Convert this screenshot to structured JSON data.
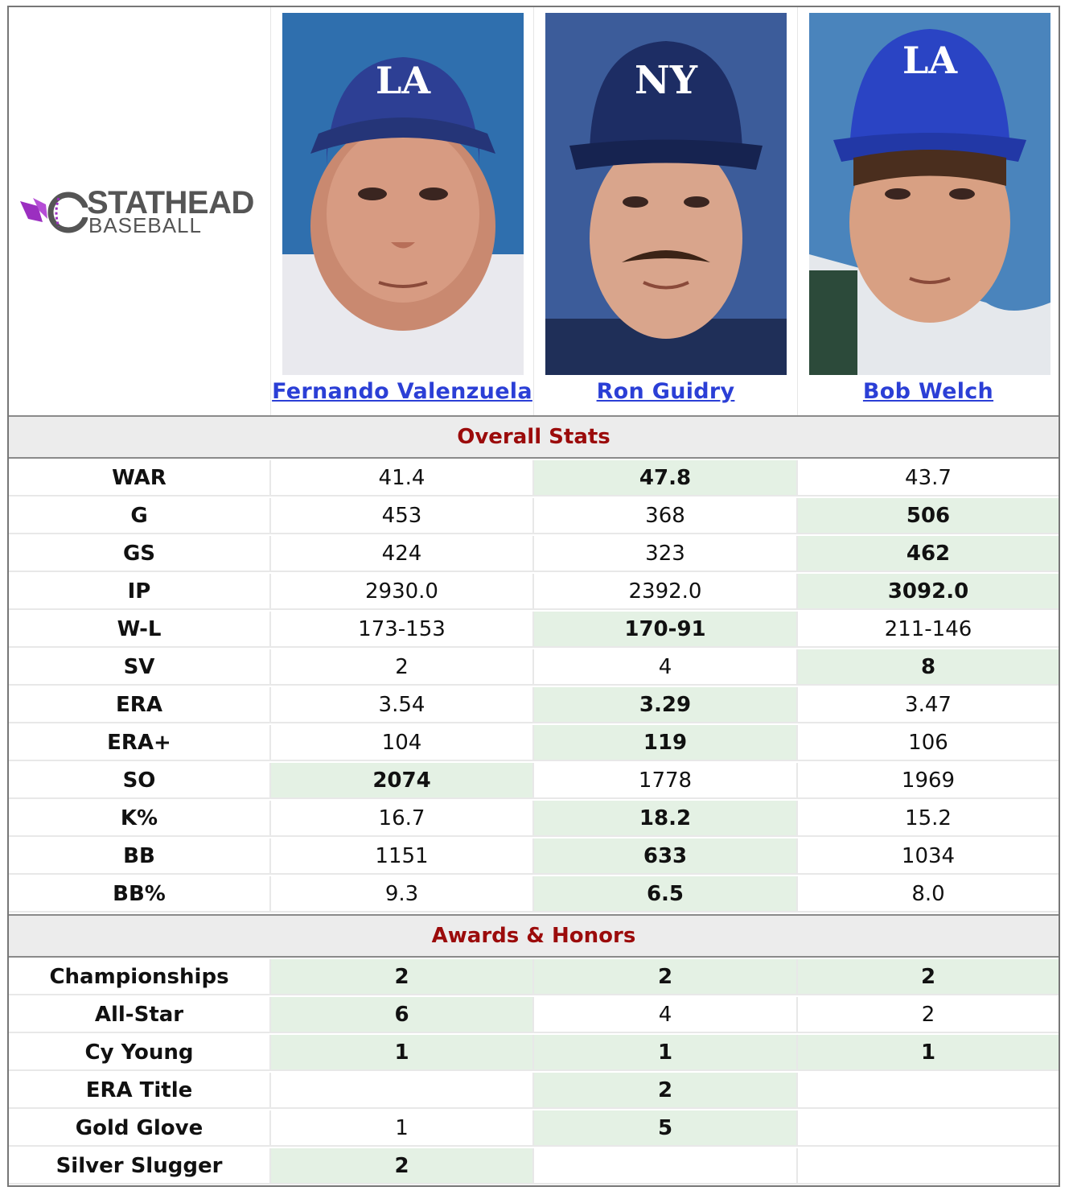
{
  "logo": {
    "line1": "STATHEAD",
    "line2": "BASEBALL"
  },
  "players": [
    {
      "name": "Fernando Valenzuela",
      "cap_logo": "LA",
      "cap_color": "#2a44c4"
    },
    {
      "name": "Ron Guidry",
      "cap_logo": "NY",
      "cap_color": "#1d2d64"
    },
    {
      "name": "Bob Welch",
      "cap_logo": "LA",
      "cap_color": "#2a44c4"
    }
  ],
  "sections": {
    "overall": "Overall Stats",
    "awards": "Awards & Honors"
  },
  "overall_rows": [
    {
      "label": "WAR",
      "values": [
        "41.4",
        "47.8",
        "43.7"
      ],
      "best": [
        1
      ]
    },
    {
      "label": "G",
      "values": [
        "453",
        "368",
        "506"
      ],
      "best": [
        2
      ]
    },
    {
      "label": "GS",
      "values": [
        "424",
        "323",
        "462"
      ],
      "best": [
        2
      ]
    },
    {
      "label": "IP",
      "values": [
        "2930.0",
        "2392.0",
        "3092.0"
      ],
      "best": [
        2
      ]
    },
    {
      "label": "W-L",
      "values": [
        "173-153",
        "170-91",
        "211-146"
      ],
      "best": [
        1
      ]
    },
    {
      "label": "SV",
      "values": [
        "2",
        "4",
        "8"
      ],
      "best": [
        2
      ]
    },
    {
      "label": "ERA",
      "values": [
        "3.54",
        "3.29",
        "3.47"
      ],
      "best": [
        1
      ]
    },
    {
      "label": "ERA+",
      "values": [
        "104",
        "119",
        "106"
      ],
      "best": [
        1
      ]
    },
    {
      "label": "SO",
      "values": [
        "2074",
        "1778",
        "1969"
      ],
      "best": [
        0
      ]
    },
    {
      "label": "K%",
      "values": [
        "16.7",
        "18.2",
        "15.2"
      ],
      "best": [
        1
      ]
    },
    {
      "label": "BB",
      "values": [
        "1151",
        "633",
        "1034"
      ],
      "best": [
        1
      ]
    },
    {
      "label": "BB%",
      "values": [
        "9.3",
        "6.5",
        "8.0"
      ],
      "best": [
        1
      ]
    }
  ],
  "award_rows": [
    {
      "label": "Championships",
      "values": [
        "2",
        "2",
        "2"
      ],
      "best": [
        0,
        1,
        2
      ]
    },
    {
      "label": "All-Star",
      "values": [
        "6",
        "4",
        "2"
      ],
      "best": [
        0
      ]
    },
    {
      "label": "Cy Young",
      "values": [
        "1",
        "1",
        "1"
      ],
      "best": [
        0,
        1,
        2
      ]
    },
    {
      "label": "ERA Title",
      "values": [
        "",
        "2",
        ""
      ],
      "best": [
        1
      ]
    },
    {
      "label": "Gold Glove",
      "values": [
        "1",
        "5",
        ""
      ],
      "best": [
        1
      ]
    },
    {
      "label": "Silver Slugger",
      "values": [
        "2",
        "",
        ""
      ],
      "best": [
        0
      ]
    }
  ],
  "colors": {
    "accent": "#9b0b0b",
    "link": "#2b3fd6",
    "highlight": "#e4f1e4",
    "logo_purple": "#9b2fc0"
  }
}
